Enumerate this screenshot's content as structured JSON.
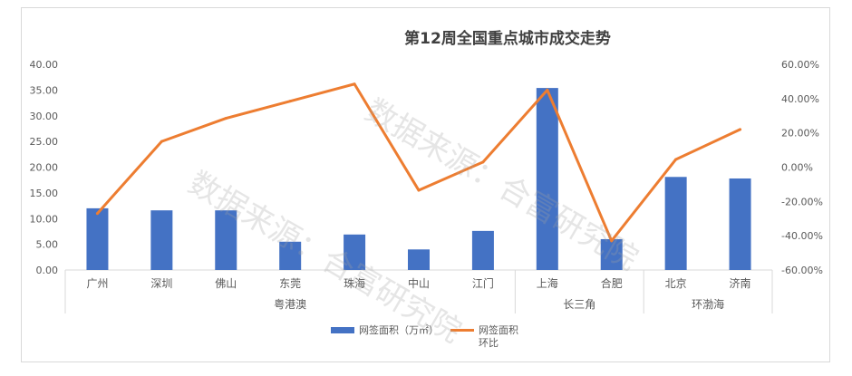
{
  "chart_data": {
    "type": "bar",
    "title": "第12周全国重点城市成交走势",
    "categories": [
      "广州",
      "深圳",
      "佛山",
      "东莞",
      "珠海",
      "中山",
      "江门",
      "上海",
      "合肥",
      "北京",
      "济南"
    ],
    "groups": [
      {
        "label": "粤港澳",
        "count": 7
      },
      {
        "label": "长三角",
        "count": 2
      },
      {
        "label": "环渤海",
        "count": 2
      }
    ],
    "series": [
      {
        "name": "网签面积（万㎡）",
        "type": "bar",
        "axis": "left",
        "color": "#4472c4",
        "values": [
          12.0,
          11.6,
          11.6,
          5.5,
          6.9,
          4.0,
          7.6,
          35.4,
          6.0,
          18.1,
          17.8
        ]
      },
      {
        "name": "网签面积环比",
        "type": "line",
        "axis": "right",
        "color": "#ed7d31",
        "values": [
          -27.0,
          15.0,
          28.5,
          38.5,
          48.5,
          -13.5,
          3.0,
          45.0,
          -43.0,
          4.5,
          22.0
        ]
      }
    ],
    "y_left": {
      "min": 0,
      "max": 40,
      "step": 5,
      "ticks": [
        "0.00",
        "5.00",
        "10.00",
        "15.00",
        "20.00",
        "25.00",
        "30.00",
        "35.00",
        "40.00"
      ]
    },
    "y_right": {
      "min": -60,
      "max": 60,
      "step": 20,
      "ticks": [
        "-60.00%",
        "-40.00%",
        "-20.00%",
        "0.00%",
        "20.00%",
        "40.00%",
        "60.00%"
      ]
    },
    "grid": false,
    "legend_position": "bottom"
  },
  "legend": {
    "bar_label": "网签面积（万㎡）",
    "line_label_1": "网签面积",
    "line_label_2": "环比"
  },
  "watermark": "数据来源：合富研究院"
}
